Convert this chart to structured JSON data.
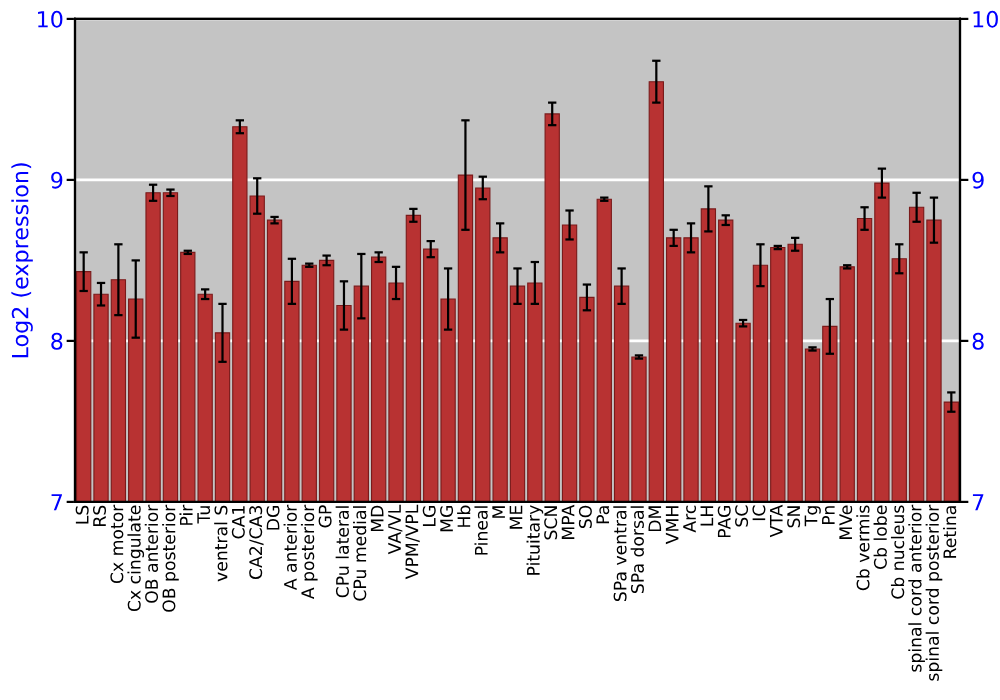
{
  "chart_data": {
    "type": "bar",
    "ylabel": "Log2 (expression)",
    "categories": [
      "LS",
      "RS",
      "Cx motor",
      "Cx cingulate",
      "OB anterior",
      "OB posterior",
      "Pir",
      "Tu",
      "ventral S",
      "CA1",
      "CA2/CA3",
      "DG",
      "A anterior",
      "A posterior",
      "GP",
      "CPu lateral",
      "CPu medial",
      "MD",
      "VA/VL",
      "VPM/VPL",
      "LG",
      "MG",
      "Hb",
      "Pineal",
      "M",
      "ME",
      "Pituitary",
      "SCN",
      "MPA",
      "SO",
      "Pa",
      "SPa ventral",
      "SPa dorsal",
      "DM",
      "VMH",
      "Arc",
      "LH",
      "PAG",
      "SC",
      "IC",
      "VTA",
      "SN",
      "Tg",
      "Pn",
      "MVe",
      "Cb vermis",
      "Cb lobe",
      "Cb nucleus",
      "spinal cord anterior",
      "spinal cord posterior",
      "Retina"
    ],
    "values": [
      8.43,
      8.29,
      8.38,
      8.26,
      8.92,
      8.92,
      8.55,
      8.29,
      8.05,
      9.33,
      8.9,
      8.75,
      8.37,
      8.47,
      8.5,
      8.22,
      8.34,
      8.52,
      8.36,
      8.78,
      8.57,
      8.26,
      9.03,
      8.95,
      8.64,
      8.34,
      8.36,
      9.41,
      8.72,
      8.27,
      8.88,
      8.34,
      7.9,
      9.61,
      8.64,
      8.64,
      8.82,
      8.75,
      8.11,
      8.47,
      8.58,
      8.6,
      7.95,
      8.09,
      8.46,
      8.76,
      8.98,
      8.51,
      8.83,
      8.75,
      7.62
    ],
    "errors": [
      0.12,
      0.07,
      0.22,
      0.24,
      0.05,
      0.02,
      0.01,
      0.03,
      0.18,
      0.04,
      0.11,
      0.02,
      0.14,
      0.01,
      0.03,
      0.15,
      0.2,
      0.03,
      0.1,
      0.04,
      0.05,
      0.19,
      0.34,
      0.07,
      0.09,
      0.11,
      0.13,
      0.07,
      0.09,
      0.08,
      0.01,
      0.11,
      0.01,
      0.13,
      0.05,
      0.09,
      0.14,
      0.03,
      0.02,
      0.13,
      0.01,
      0.04,
      0.01,
      0.17,
      0.01,
      0.07,
      0.09,
      0.09,
      0.09,
      0.14,
      0.06
    ],
    "color": "#b83232",
    "ylim": [
      7,
      10
    ],
    "yticks": [
      7,
      8,
      9,
      10
    ],
    "y2lim": [
      7,
      10
    ],
    "y2ticks": [
      7,
      8,
      9,
      10
    ],
    "grid": "y"
  }
}
